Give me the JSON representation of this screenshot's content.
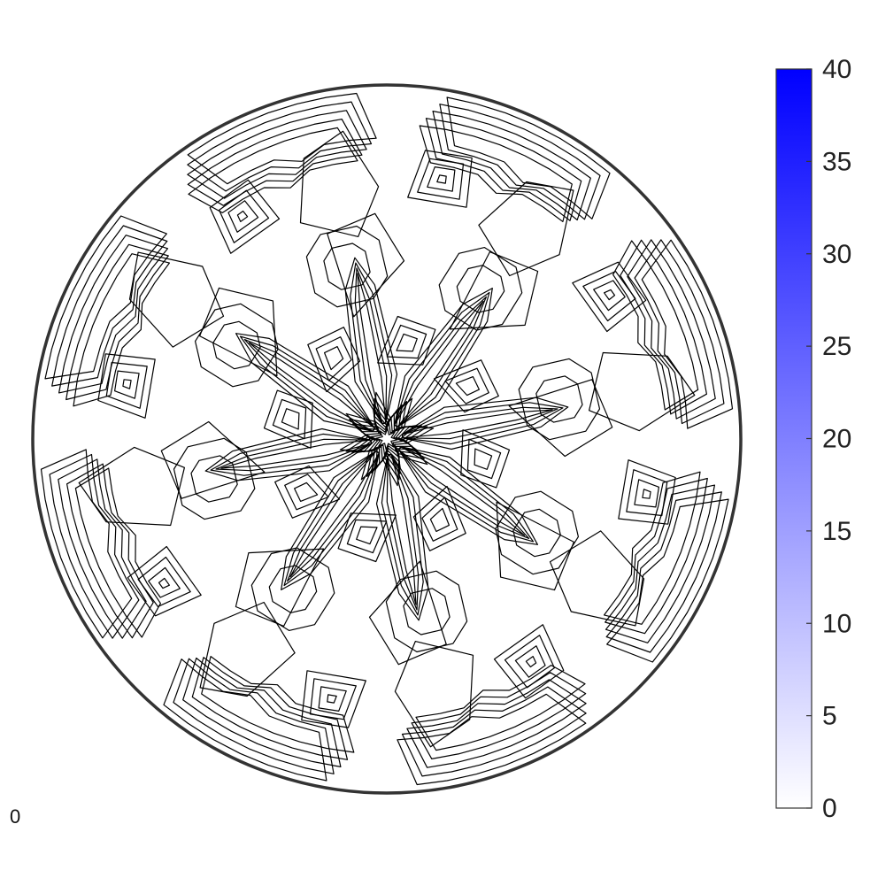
{
  "corner_label": "0",
  "chart_data": {
    "type": "contour",
    "title": "",
    "xlabel": "",
    "ylabel": "",
    "domain": "unit disk",
    "symmetry": "8-fold rotational",
    "contour_color": "#000000",
    "contours": [
      {
        "level": "hub",
        "rings": 8,
        "count": 1
      },
      {
        "level": "spoke",
        "rings": 4,
        "count": 8
      },
      {
        "level": "inner-pad",
        "rings": 3,
        "count": 8
      },
      {
        "level": "mid-block",
        "rings": 2,
        "count": 8
      },
      {
        "level": "outer-peak",
        "rings": 4,
        "count": 8
      },
      {
        "level": "rim-band",
        "rings": 5,
        "count": 8
      }
    ],
    "colorbar": {
      "min": 0,
      "max": 40,
      "ticks": [
        0,
        5,
        10,
        15,
        20,
        25,
        30,
        35,
        40
      ],
      "tick_labels": [
        "0",
        "5",
        "10",
        "15",
        "20",
        "25",
        "30",
        "35",
        "40"
      ],
      "color_low": "#ffffff",
      "color_high": "#0000ff"
    }
  }
}
